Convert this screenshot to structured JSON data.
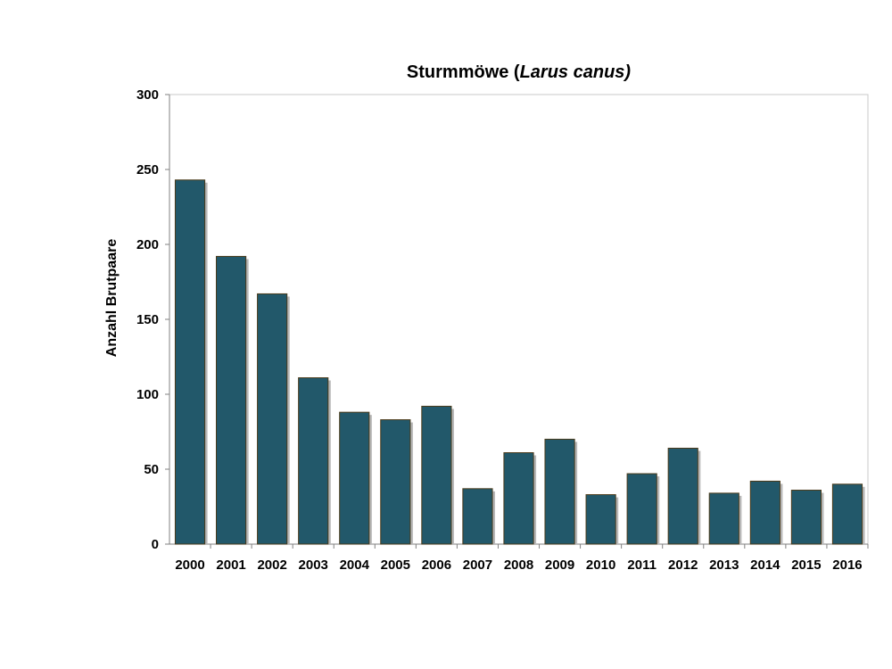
{
  "chart_data": {
    "type": "bar",
    "title_main": "Sturmmöwe (",
    "title_italic": "Larus canus)",
    "xlabel": "",
    "ylabel": "Anzahl Brutpaare",
    "categories": [
      "2000",
      "2001",
      "2002",
      "2003",
      "2004",
      "2005",
      "2006",
      "2007",
      "2008",
      "2009",
      "2010",
      "2011",
      "2012",
      "2013",
      "2014",
      "2015",
      "2016"
    ],
    "values": [
      243,
      192,
      167,
      111,
      88,
      83,
      92,
      37,
      61,
      70,
      33,
      47,
      64,
      34,
      42,
      36,
      40
    ],
    "ylim": [
      0,
      300
    ],
    "yticks": [
      "0",
      "50",
      "100",
      "150",
      "200",
      "250",
      "300"
    ],
    "grid": false,
    "legend": "none",
    "colors": {
      "bar_fill": "#22586a",
      "bar_edge": "#4a3a1a",
      "shadow": "#b8b8b8",
      "frame": "#c8c8c8"
    }
  }
}
